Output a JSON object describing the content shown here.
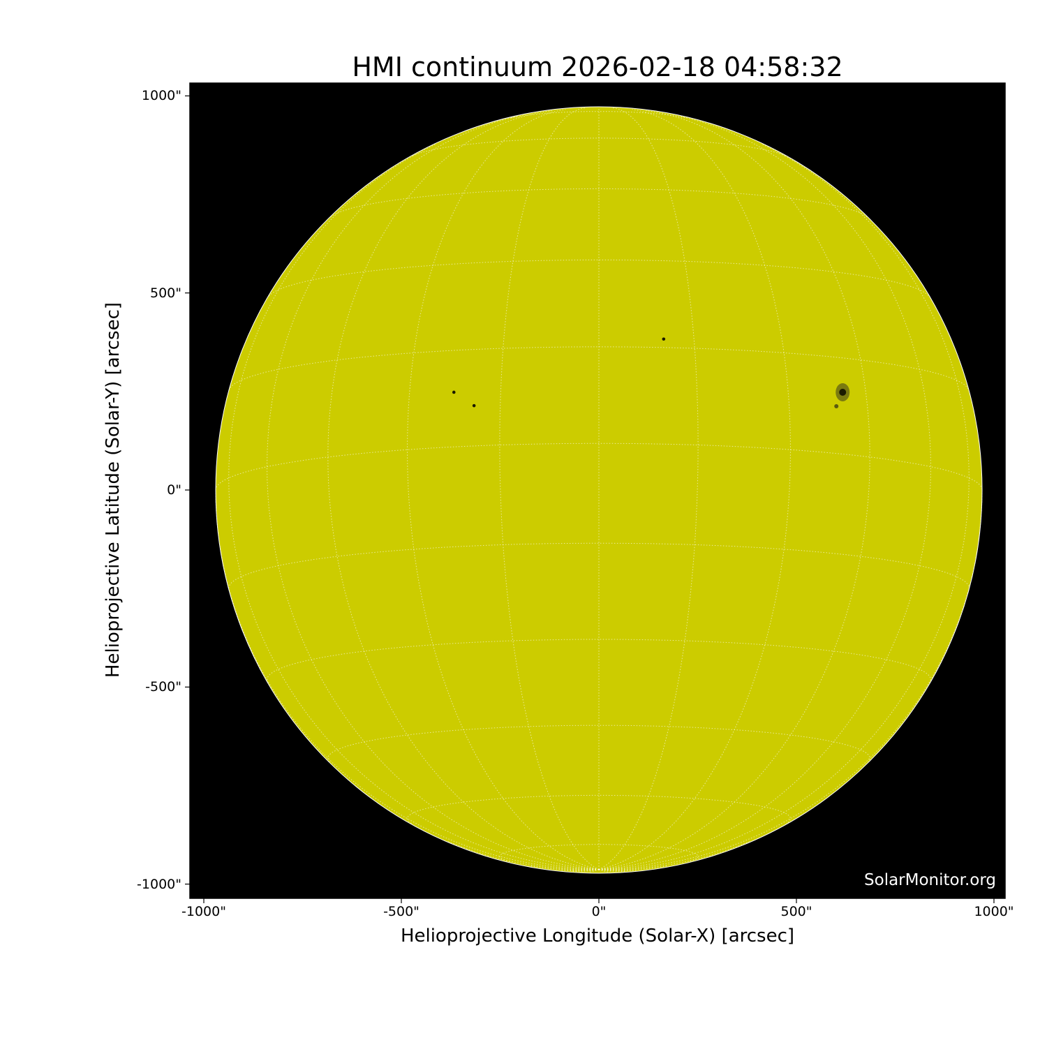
{
  "title": "HMI continuum 2026-02-18 04:58:32",
  "watermark": "SolarMonitor.org",
  "colors": {
    "disk": "#cccc00",
    "background": "#000000",
    "grid": "#ffffff",
    "sunspot": "#1a1a00"
  },
  "chart_data": {
    "type": "image",
    "xlabel": "Helioprojective Longitude (Solar-X) [arcsec]",
    "ylabel": "Helioprojective Latitude (Solar-Y) [arcsec]",
    "xlim": [
      -1030,
      1030
    ],
    "ylim": [
      -1030,
      1030
    ],
    "x_ticks": [
      -1000,
      -500,
      0,
      500,
      1000
    ],
    "y_ticks": [
      -1000,
      -500,
      0,
      500,
      1000
    ],
    "x_tick_labels": [
      "-1000\"",
      "-500\"",
      "0\"",
      "500\"",
      "1000\""
    ],
    "y_tick_labels": [
      "-1000\"",
      "-500\"",
      "0\"",
      "500\"",
      "1000\""
    ],
    "solar_radius_arcsec": 970,
    "grid": {
      "type": "heliographic",
      "spacing_deg": 15,
      "style": "dotted"
    },
    "sunspots": [
      {
        "x": 617,
        "y": 248,
        "size": "large"
      },
      {
        "x": 164,
        "y": 383,
        "size": "small"
      },
      {
        "x": -367,
        "y": 248,
        "size": "small"
      },
      {
        "x": -316,
        "y": 214,
        "size": "small"
      }
    ]
  }
}
